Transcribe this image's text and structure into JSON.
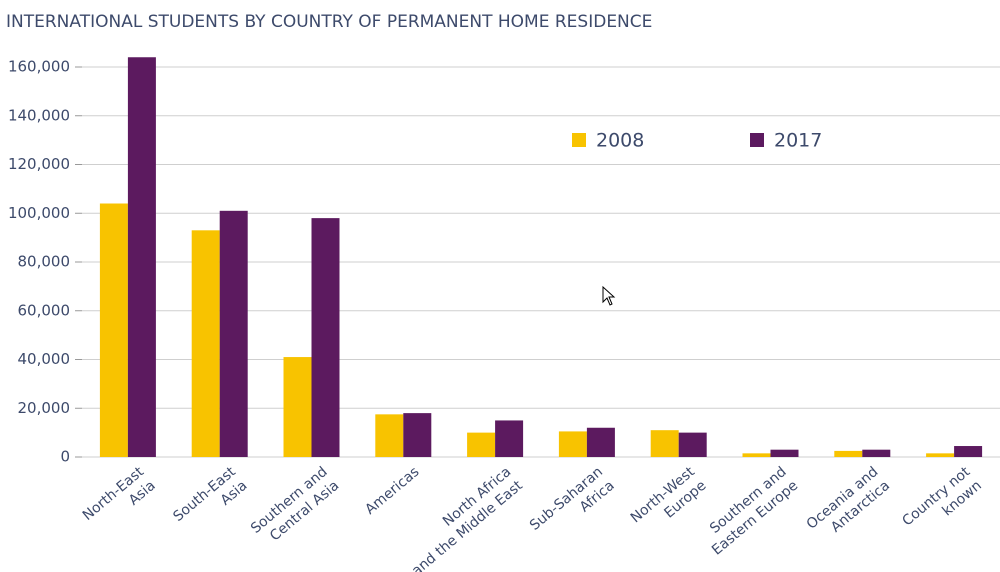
{
  "chart_data": {
    "type": "bar",
    "title": "INTERNATIONAL STUDENTS BY COUNTRY OF PERMANENT HOME RESIDENCE",
    "categories": [
      [
        "North-East",
        "Asia"
      ],
      [
        "South-East",
        "Asia"
      ],
      [
        "Southern and",
        "Central Asia"
      ],
      [
        "Americas"
      ],
      [
        "North Africa",
        "and the Middle East"
      ],
      [
        "Sub-Saharan",
        "Africa"
      ],
      [
        "North-West",
        "Europe"
      ],
      [
        "Southern and",
        "Eastern Europe"
      ],
      [
        "Oceania and",
        "Antarctica"
      ],
      [
        "Country not",
        "known"
      ]
    ],
    "series": [
      {
        "name": "2008",
        "color": "#f8c300",
        "values": [
          104000,
          93000,
          41000,
          17500,
          10000,
          10500,
          11000,
          1500,
          2500,
          1500
        ]
      },
      {
        "name": "2017",
        "color": "#5c1a5f",
        "values": [
          164000,
          101000,
          98000,
          18000,
          15000,
          12000,
          10000,
          3000,
          3000,
          4500
        ]
      }
    ],
    "ylim": [
      0,
      165000
    ],
    "yticks": [
      {
        "value": 0,
        "label": "0"
      },
      {
        "value": 20000,
        "label": "20,000"
      },
      {
        "value": 40000,
        "label": "40,000"
      },
      {
        "value": 60000,
        "label": "60,000"
      },
      {
        "value": 80000,
        "label": "80,000"
      },
      {
        "value": 100000,
        "label": "100,000"
      },
      {
        "value": 120000,
        "label": "120,000"
      },
      {
        "value": 140000,
        "label": "140,000"
      },
      {
        "value": 160000,
        "label": "160,000"
      }
    ],
    "grid": true
  }
}
